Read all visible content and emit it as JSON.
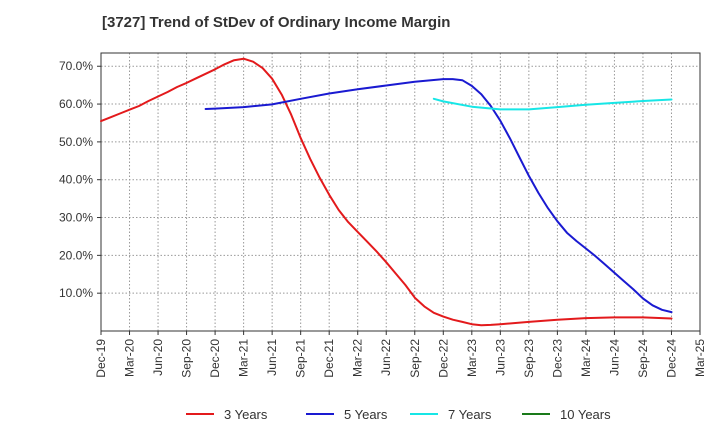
{
  "chart_data": {
    "type": "line",
    "title": "[3727]  Trend of StDev of Ordinary Income Margin",
    "xlabel": "",
    "ylabel": "",
    "x_tick_labels": [
      "Dec-19",
      "Mar-20",
      "Jun-20",
      "Sep-20",
      "Dec-20",
      "Mar-21",
      "Jun-21",
      "Sep-21",
      "Dec-21",
      "Mar-22",
      "Jun-22",
      "Sep-22",
      "Dec-22",
      "Mar-23",
      "Jun-23",
      "Sep-23",
      "Dec-23",
      "Mar-24",
      "Jun-24",
      "Sep-24",
      "Dec-24",
      "Mar-25"
    ],
    "y_tick_labels": [
      "10.0%",
      "20.0%",
      "30.0%",
      "40.0%",
      "50.0%",
      "60.0%",
      "70.0%"
    ],
    "y_ticks": [
      10,
      20,
      30,
      40,
      50,
      60,
      70
    ],
    "ylim": [
      0,
      73.5
    ],
    "grid": true,
    "legend_position": "bottom",
    "series": [
      {
        "name": "3 Years",
        "color": "#e31a1c",
        "points": [
          [
            "Dec-19",
            55.5
          ],
          [
            "Jan-20",
            56.5
          ],
          [
            "Feb-20",
            57.5
          ],
          [
            "Mar-20",
            58.5
          ],
          [
            "Apr-20",
            59.5
          ],
          [
            "May-20",
            60.8
          ],
          [
            "Jun-20",
            62.0
          ],
          [
            "Jul-20",
            63.2
          ],
          [
            "Aug-20",
            64.5
          ],
          [
            "Sep-20",
            65.6
          ],
          [
            "Oct-20",
            66.8
          ],
          [
            "Nov-20",
            68.0
          ],
          [
            "Dec-20",
            69.2
          ],
          [
            "Jan-21",
            70.5
          ],
          [
            "Feb-21",
            71.6
          ],
          [
            "Mar-21",
            72.0
          ],
          [
            "Apr-21",
            71.2
          ],
          [
            "May-21",
            69.5
          ],
          [
            "Jun-21",
            66.7
          ],
          [
            "Jul-21",
            62.5
          ],
          [
            "Aug-21",
            57.2
          ],
          [
            "Sep-21",
            51.0
          ],
          [
            "Oct-21",
            45.5
          ],
          [
            "Nov-21",
            40.5
          ],
          [
            "Dec-21",
            36.0
          ],
          [
            "Jan-22",
            32.0
          ],
          [
            "Feb-22",
            28.8
          ],
          [
            "Mar-22",
            26.2
          ],
          [
            "Apr-22",
            23.6
          ],
          [
            "May-22",
            21.0
          ],
          [
            "Jun-22",
            18.2
          ],
          [
            "Jul-22",
            15.2
          ],
          [
            "Aug-22",
            12.2
          ],
          [
            "Sep-22",
            8.8
          ],
          [
            "Oct-22",
            6.5
          ],
          [
            "Nov-22",
            4.8
          ],
          [
            "Dec-22",
            3.8
          ],
          [
            "Jan-23",
            3.0
          ],
          [
            "Feb-23",
            2.4
          ],
          [
            "Mar-23",
            1.8
          ],
          [
            "Apr-23",
            1.5
          ],
          [
            "May-23",
            1.6
          ],
          [
            "Jun-23",
            1.8
          ],
          [
            "Sep-23",
            2.4
          ],
          [
            "Dec-23",
            3.0
          ],
          [
            "Mar-24",
            3.4
          ],
          [
            "Jun-24",
            3.6
          ],
          [
            "Sep-24",
            3.6
          ],
          [
            "Dec-24",
            3.3
          ]
        ]
      },
      {
        "name": "5 Years",
        "color": "#1a1ad1",
        "points": [
          [
            "Nov-20",
            58.7
          ],
          [
            "Dec-20",
            58.8
          ],
          [
            "Mar-21",
            59.2
          ],
          [
            "Jun-21",
            59.9
          ],
          [
            "Sep-21",
            61.4
          ],
          [
            "Dec-21",
            62.8
          ],
          [
            "Mar-22",
            63.9
          ],
          [
            "Jun-22",
            64.9
          ],
          [
            "Sep-22",
            65.9
          ],
          [
            "Dec-22",
            66.6
          ],
          [
            "Jan-23",
            66.6
          ],
          [
            "Feb-23",
            66.3
          ],
          [
            "Mar-23",
            64.8
          ],
          [
            "Apr-23",
            62.6
          ],
          [
            "May-23",
            59.5
          ],
          [
            "Jun-23",
            55.6
          ],
          [
            "Jul-23",
            51.0
          ],
          [
            "Aug-23",
            46.0
          ],
          [
            "Sep-23",
            41.0
          ],
          [
            "Oct-23",
            36.5
          ],
          [
            "Nov-23",
            32.5
          ],
          [
            "Dec-23",
            29.0
          ],
          [
            "Jan-24",
            26.0
          ],
          [
            "Feb-24",
            23.8
          ],
          [
            "Mar-24",
            21.8
          ],
          [
            "Apr-24",
            19.8
          ],
          [
            "May-24",
            17.6
          ],
          [
            "Jun-24",
            15.4
          ],
          [
            "Jul-24",
            13.2
          ],
          [
            "Aug-24",
            11.0
          ],
          [
            "Sep-24",
            8.6
          ],
          [
            "Oct-24",
            6.8
          ],
          [
            "Nov-24",
            5.6
          ],
          [
            "Dec-24",
            5.0
          ]
        ]
      },
      {
        "name": "7 Years",
        "color": "#17e6e6",
        "points": [
          [
            "Nov-22",
            61.4
          ],
          [
            "Dec-22",
            60.7
          ],
          [
            "Mar-23",
            59.3
          ],
          [
            "Jun-23",
            58.6
          ],
          [
            "Sep-23",
            58.6
          ],
          [
            "Dec-23",
            59.2
          ],
          [
            "Mar-24",
            59.8
          ],
          [
            "Jun-24",
            60.3
          ],
          [
            "Sep-24",
            60.8
          ],
          [
            "Dec-24",
            61.2
          ]
        ]
      },
      {
        "name": "10 Years",
        "color": "#1a7a1a",
        "points": []
      }
    ]
  }
}
